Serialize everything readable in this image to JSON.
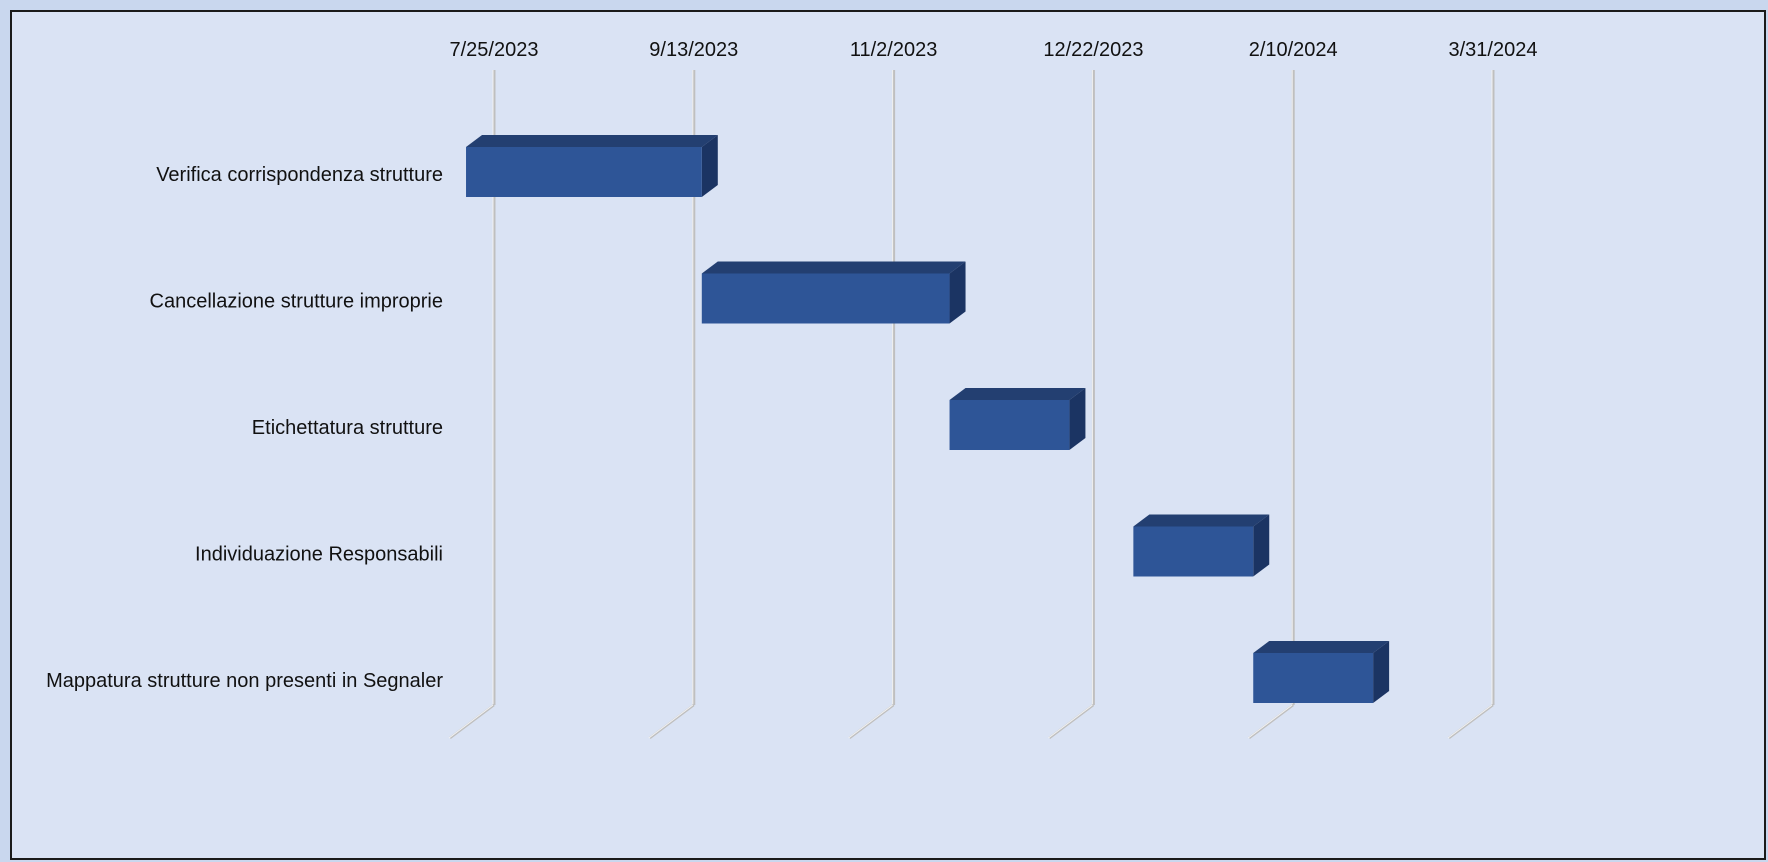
{
  "chart_data": {
    "type": "bar",
    "orientation": "horizontal",
    "style": "gantt-3d",
    "title": "",
    "xlabel": "",
    "ylabel": "",
    "x_axis": {
      "type": "date",
      "position": "top",
      "min": "2023-07-25",
      "max": "2024-03-31",
      "tick_labels": [
        "7/25/2023",
        "9/13/2023",
        "11/2/2023",
        "12/22/2023",
        "2/10/2024",
        "3/31/2024"
      ],
      "tick_dates": [
        "2023-07-25",
        "2023-09-13",
        "2023-11-02",
        "2023-12-22",
        "2024-02-10",
        "2024-03-31"
      ]
    },
    "grid": true,
    "legend": "none",
    "bar_color": "#2e5597",
    "bar_top_color": "#233f71",
    "bar_side_color": "#1b3463",
    "tasks": [
      {
        "label": "Verifica corrispondenza strutture",
        "start": "2023-07-18",
        "end": "2023-09-15"
      },
      {
        "label": "Cancellazione strutture improprie",
        "start": "2023-09-15",
        "end": "2023-11-16"
      },
      {
        "label": "Etichettatura strutture",
        "start": "2023-11-16",
        "end": "2023-12-16"
      },
      {
        "label": "Individuazione Responsabili",
        "start": "2024-01-01",
        "end": "2024-01-31"
      },
      {
        "label": "Mappatura strutture non presenti in Segnaler",
        "start": "2024-01-31",
        "end": "2024-03-01"
      }
    ]
  }
}
